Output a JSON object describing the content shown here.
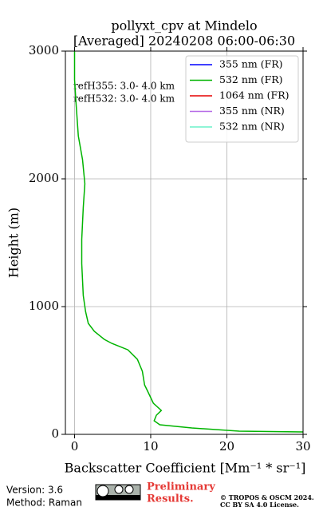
{
  "chart_data": {
    "type": "line",
    "title": "pollyxt_cpv at Mindelo",
    "subtitle": "[Averaged] 20240208 06:00-06:30",
    "xlabel": "Backscatter Coefficient [Mm⁻¹ * sr⁻¹]",
    "ylabel": "Height (m)",
    "annotations": [
      "refH355:  3.0- 4.0 km",
      "refH532:  3.0- 4.0 km"
    ],
    "y": [
      3000,
      2775,
      2587,
      2337,
      2150,
      1962,
      1775,
      1525,
      1337,
      1087,
      962,
      869,
      806,
      744,
      712,
      662,
      587,
      494,
      387,
      350,
      244,
      187,
      150,
      106,
      75,
      50,
      25,
      19
    ],
    "series": [
      {
        "name": "355 nm (FR)",
        "color": "#0000ff",
        "values": [
          null,
          null,
          null,
          null,
          null,
          null,
          null,
          null,
          null,
          null,
          null,
          null,
          null,
          null,
          null,
          null,
          null,
          null,
          null,
          null,
          null,
          null,
          null,
          null,
          null,
          null,
          null,
          null
        ]
      },
      {
        "name": "532 nm (FR)",
        "color": "#00b400",
        "values": [
          0,
          0,
          0.2,
          0.5,
          1.05,
          1.35,
          1.15,
          0.95,
          0.95,
          1.15,
          1.45,
          1.8,
          2.6,
          3.9,
          4.9,
          7.0,
          8.25,
          8.9,
          9.2,
          9.5,
          10.35,
          11.4,
          10.75,
          10.45,
          11.2,
          15.4,
          21.6,
          30
        ]
      },
      {
        "name": "1064 nm (FR)",
        "color": "#e60000",
        "values": [
          null,
          null,
          null,
          null,
          null,
          null,
          null,
          null,
          null,
          null,
          null,
          null,
          null,
          null,
          null,
          null,
          null,
          null,
          null,
          null,
          null,
          null,
          null,
          null,
          null,
          null,
          null,
          null
        ]
      },
      {
        "name": "355 nm (NR)",
        "color": "#b469e6",
        "values": [
          null,
          null,
          null,
          null,
          null,
          null,
          null,
          null,
          null,
          null,
          null,
          null,
          null,
          null,
          null,
          null,
          null,
          null,
          null,
          null,
          null,
          null,
          null,
          null,
          null,
          null,
          null,
          null
        ]
      },
      {
        "name": "532 nm (NR)",
        "color": "#6bf2c8",
        "values": [
          null,
          null,
          null,
          null,
          null,
          null,
          null,
          null,
          null,
          null,
          null,
          null,
          null,
          null,
          null,
          null,
          null,
          null,
          null,
          null,
          null,
          null,
          null,
          null,
          null,
          null,
          null,
          null
        ]
      }
    ],
    "xlim": [
      -1.2,
      30
    ],
    "xticks": [
      0,
      10,
      20,
      30
    ],
    "ylim": [
      0,
      3000
    ],
    "yticks": [
      0,
      1000,
      2000,
      3000
    ],
    "grid": true,
    "legend": "upper right"
  },
  "footer": {
    "version": "Version: 3.6",
    "method": "Method: Raman",
    "preliminary": [
      "Preliminary",
      "Results."
    ],
    "copyright": [
      "© TROPOS & OSCM 2024.",
      "CC BY SA 4.0 License."
    ]
  }
}
